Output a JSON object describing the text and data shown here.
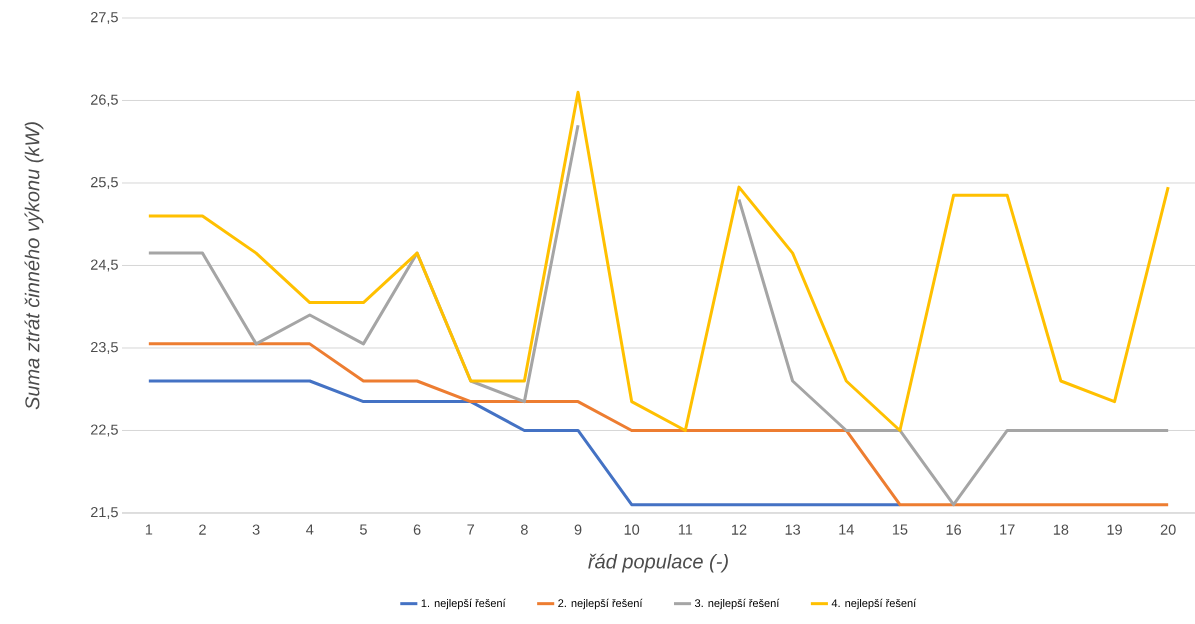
{
  "chart_data": {
    "type": "line",
    "xlabel": "řád populace (-)",
    "ylabel": "Suma ztrát činného výkonu (kW)",
    "categories": [
      "1",
      "2",
      "3",
      "4",
      "5",
      "6",
      "7",
      "8",
      "9",
      "10",
      "11",
      "12",
      "13",
      "14",
      "15",
      "16",
      "17",
      "18",
      "19",
      "20"
    ],
    "series": [
      {
        "name": "1. nejlepší řešení",
        "color": "#4472c4",
        "values": [
          23.1,
          23.1,
          23.1,
          23.1,
          22.85,
          22.85,
          22.85,
          22.5,
          22.5,
          21.6,
          21.6,
          21.6,
          21.6,
          21.6,
          21.6,
          null,
          null,
          null,
          null,
          null
        ]
      },
      {
        "name": "2. nejlepší řešení",
        "color": "#ed7d31",
        "values": [
          23.55,
          23.55,
          23.55,
          23.55,
          23.1,
          23.1,
          22.85,
          22.85,
          22.85,
          22.5,
          22.5,
          22.5,
          22.5,
          22.5,
          21.6,
          21.6,
          21.6,
          21.6,
          21.6,
          21.6
        ]
      },
      {
        "name": "3. nejlepší řešení",
        "color": "#a5a5a5",
        "values": [
          24.65,
          24.65,
          23.55,
          23.9,
          23.55,
          24.65,
          23.1,
          22.85,
          26.2,
          null,
          null,
          25.3,
          23.1,
          22.5,
          22.5,
          21.6,
          22.5,
          22.5,
          22.5,
          22.5
        ]
      },
      {
        "name": "4. nejlepší řešení",
        "color": "#ffc000",
        "values": [
          25.1,
          25.1,
          24.65,
          24.05,
          24.05,
          24.65,
          23.1,
          23.1,
          26.6,
          22.85,
          22.5,
          25.45,
          24.65,
          23.1,
          22.5,
          25.35,
          25.35,
          23.1,
          22.85,
          25.45
        ]
      }
    ],
    "ylim": [
      21.5,
      27.5
    ],
    "yticks": [
      {
        "value": 21.5,
        "label": "21,5"
      },
      {
        "value": 22.5,
        "label": "22,5"
      },
      {
        "value": 23.5,
        "label": "23,5"
      },
      {
        "value": 24.5,
        "label": "24,5"
      },
      {
        "value": 25.5,
        "label": "25,5"
      },
      {
        "value": 26.5,
        "label": "26,5"
      },
      {
        "value": 27.5,
        "label": "27,5"
      }
    ],
    "grid": "y",
    "legend": "bottom",
    "marker": "none",
    "line_style": "solid"
  }
}
